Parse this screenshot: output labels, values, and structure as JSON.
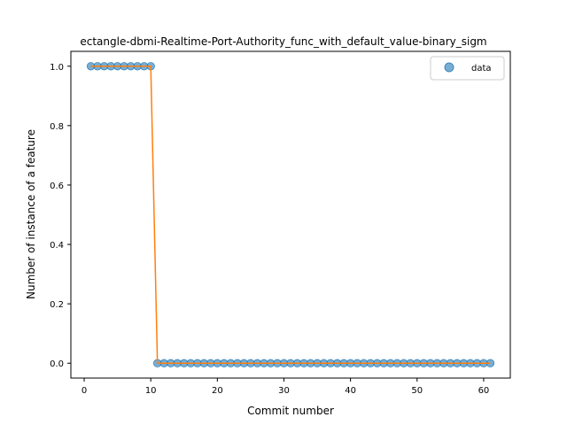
{
  "chart_data": {
    "type": "scatter",
    "title": "ectangle-dbmi-Realtime-Port-Authority_func_with_default_value-binary_sigm",
    "xlabel": "Commit number",
    "ylabel": "Number of instance of a feature",
    "xlim": [
      -2,
      64
    ],
    "ylim": [
      -0.05,
      1.05
    ],
    "xticks": [
      0,
      10,
      20,
      30,
      40,
      50,
      60
    ],
    "yticks": [
      0.0,
      0.2,
      0.4,
      0.6,
      0.8,
      1.0
    ],
    "xtick_labels": [
      "0",
      "10",
      "20",
      "30",
      "40",
      "50",
      "60"
    ],
    "ytick_labels": [
      "0.0",
      "0.2",
      "0.4",
      "0.6",
      "0.8",
      "1.0"
    ],
    "grid": false,
    "legend_position": "top-right",
    "series": [
      {
        "name": "data",
        "kind": "scatter",
        "color": "#1f77b4",
        "x": [
          1,
          2,
          3,
          4,
          5,
          6,
          7,
          8,
          9,
          10,
          11,
          12,
          13,
          14,
          15,
          16,
          17,
          18,
          19,
          20,
          21,
          22,
          23,
          24,
          25,
          26,
          27,
          28,
          29,
          30,
          31,
          32,
          33,
          34,
          35,
          36,
          37,
          38,
          39,
          40,
          41,
          42,
          43,
          44,
          45,
          46,
          47,
          48,
          49,
          50,
          51,
          52,
          53,
          54,
          55,
          56,
          57,
          58,
          59,
          60,
          61
        ],
        "y": [
          1,
          1,
          1,
          1,
          1,
          1,
          1,
          1,
          1,
          1,
          0,
          0,
          0,
          0,
          0,
          0,
          0,
          0,
          0,
          0,
          0,
          0,
          0,
          0,
          0,
          0,
          0,
          0,
          0,
          0,
          0,
          0,
          0,
          0,
          0,
          0,
          0,
          0,
          0,
          0,
          0,
          0,
          0,
          0,
          0,
          0,
          0,
          0,
          0,
          0,
          0,
          0,
          0,
          0,
          0,
          0,
          0,
          0,
          0,
          0,
          0
        ]
      },
      {
        "kind": "line",
        "color": "#ff7f0e",
        "x": [
          1,
          2,
          3,
          4,
          5,
          6,
          7,
          8,
          9,
          10,
          11,
          12,
          13,
          14,
          15,
          16,
          17,
          18,
          19,
          20,
          21,
          22,
          23,
          24,
          25,
          26,
          27,
          28,
          29,
          30,
          31,
          32,
          33,
          34,
          35,
          36,
          37,
          38,
          39,
          40,
          41,
          42,
          43,
          44,
          45,
          46,
          47,
          48,
          49,
          50,
          51,
          52,
          53,
          54,
          55,
          56,
          57,
          58,
          59,
          60,
          61
        ],
        "y": [
          1,
          1,
          1,
          1,
          1,
          1,
          1,
          1,
          1,
          1,
          0,
          0,
          0,
          0,
          0,
          0,
          0,
          0,
          0,
          0,
          0,
          0,
          0,
          0,
          0,
          0,
          0,
          0,
          0,
          0,
          0,
          0,
          0,
          0,
          0,
          0,
          0,
          0,
          0,
          0,
          0,
          0,
          0,
          0,
          0,
          0,
          0,
          0,
          0,
          0,
          0,
          0,
          0,
          0,
          0,
          0,
          0,
          0,
          0,
          0,
          0
        ]
      }
    ]
  }
}
